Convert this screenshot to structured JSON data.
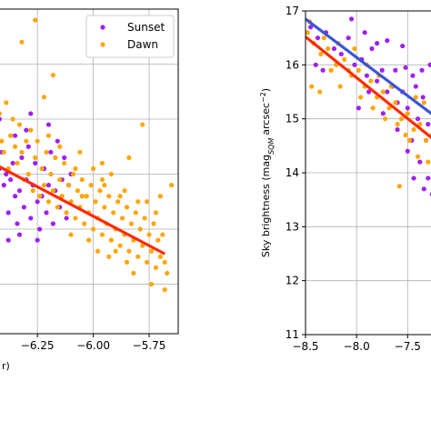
{
  "chart_data": [
    {
      "type": "scatter",
      "title": "",
      "xlabel": "",
      "xlabel_fragment": "r)",
      "ylabel": "",
      "xlim": [
        -6.45,
        -5.62
      ],
      "ylim": [
        12.1,
        18.0
      ],
      "grid": true,
      "legend_position": "top-right",
      "x_ticks": [
        -6.25,
        -6.0,
        -5.75
      ],
      "x_tick_labels": [
        "−6.25",
        "−6.00",
        "−5.75"
      ],
      "y_ticks": [
        13,
        14,
        15,
        16,
        17,
        18
      ],
      "series": [
        {
          "name": "Sunset",
          "color": "#a020f0",
          "points": [
            [
              -6.44,
              14.2
            ],
            [
              -6.43,
              14.5
            ],
            [
              -6.42,
              15.1
            ],
            [
              -6.41,
              15.4
            ],
            [
              -6.4,
              14.8
            ],
            [
              -6.39,
              15.0
            ],
            [
              -6.38,
              14.3
            ],
            [
              -6.37,
              14.9
            ],
            [
              -6.36,
              15.2
            ],
            [
              -6.35,
              14.6
            ],
            [
              -6.34,
              14.1
            ],
            [
              -6.33,
              14.7
            ],
            [
              -6.32,
              15.3
            ],
            [
              -6.31,
              14.4
            ],
            [
              -6.3,
              14.9
            ],
            [
              -6.29,
              15.5
            ],
            [
              -6.28,
              14.2
            ],
            [
              -6.27,
              14.8
            ],
            [
              -6.26,
              15.2
            ],
            [
              -6.25,
              14.5
            ],
            [
              -6.24,
              14.0
            ],
            [
              -6.23,
              14.6
            ],
            [
              -6.22,
              15.1
            ],
            [
              -6.21,
              14.3
            ],
            [
              -6.2,
              14.8
            ],
            [
              -6.19,
              15.4
            ],
            [
              -6.18,
              14.1
            ],
            [
              -6.17,
              14.7
            ],
            [
              -6.16,
              15.6
            ],
            [
              -6.15,
              14.4
            ],
            [
              -6.14,
              14.9
            ],
            [
              -6.13,
              15.3
            ],
            [
              -6.12,
              14.2
            ],
            [
              -6.11,
              14.8
            ],
            [
              -6.1,
              15.0
            ],
            [
              -6.3,
              15.8
            ],
            [
              -6.35,
              15.7
            ],
            [
              -6.2,
              15.9
            ],
            [
              -6.42,
              16.0
            ],
            [
              -6.28,
              16.1
            ],
            [
              -6.38,
              13.8
            ],
            [
              -6.33,
              13.9
            ],
            [
              -6.25,
              13.8
            ]
          ]
        },
        {
          "name": "Dawn",
          "color": "#ffa500",
          "points": [
            [
              -6.44,
              15.3
            ],
            [
              -6.43,
              15.8
            ],
            [
              -6.42,
              16.1
            ],
            [
              -6.41,
              15.6
            ],
            [
              -6.4,
              15.4
            ],
            [
              -6.39,
              16.3
            ],
            [
              -6.38,
              15.1
            ],
            [
              -6.37,
              15.7
            ],
            [
              -6.36,
              16.0
            ],
            [
              -6.35,
              15.5
            ],
            [
              -6.34,
              15.2
            ],
            [
              -6.33,
              15.9
            ],
            [
              -6.32,
              15.4
            ],
            [
              -6.31,
              14.9
            ],
            [
              -6.3,
              15.6
            ],
            [
              -6.29,
              15.0
            ],
            [
              -6.28,
              15.8
            ],
            [
              -6.27,
              14.7
            ],
            [
              -6.26,
              15.3
            ],
            [
              -6.25,
              15.6
            ],
            [
              -6.24,
              14.6
            ],
            [
              -6.23,
              15.1
            ],
            [
              -6.22,
              14.8
            ],
            [
              -6.21,
              15.4
            ],
            [
              -6.2,
              14.5
            ],
            [
              -6.19,
              15.0
            ],
            [
              -6.18,
              14.7
            ],
            [
              -6.17,
              15.3
            ],
            [
              -6.16,
              14.4
            ],
            [
              -6.15,
              14.9
            ],
            [
              -6.14,
              14.6
            ],
            [
              -6.13,
              15.2
            ],
            [
              -6.12,
              14.3
            ],
            [
              -6.11,
              14.8
            ],
            [
              -6.1,
              14.5
            ],
            [
              -6.09,
              15.0
            ],
            [
              -6.08,
              14.2
            ],
            [
              -6.07,
              14.7
            ],
            [
              -6.06,
              14.4
            ],
            [
              -6.05,
              14.9
            ],
            [
              -6.04,
              14.1
            ],
            [
              -6.03,
              14.6
            ],
            [
              -6.02,
              14.3
            ],
            [
              -6.01,
              14.8
            ],
            [
              -6.0,
              14.0
            ],
            [
              -5.99,
              14.5
            ],
            [
              -5.98,
              14.2
            ],
            [
              -5.97,
              14.7
            ],
            [
              -5.96,
              13.9
            ],
            [
              -5.95,
              14.4
            ],
            [
              -5.94,
              14.1
            ],
            [
              -5.93,
              14.6
            ],
            [
              -5.92,
              13.8
            ],
            [
              -5.91,
              14.3
            ],
            [
              -5.9,
              14.0
            ],
            [
              -5.89,
              14.5
            ],
            [
              -5.88,
              13.7
            ],
            [
              -5.87,
              14.2
            ],
            [
              -5.86,
              13.9
            ],
            [
              -5.85,
              14.4
            ],
            [
              -5.84,
              13.6
            ],
            [
              -5.83,
              14.1
            ],
            [
              -5.82,
              13.8
            ],
            [
              -5.81,
              14.3
            ],
            [
              -5.8,
              13.5
            ],
            [
              -5.79,
              14.0
            ],
            [
              -5.78,
              13.7
            ],
            [
              -5.77,
              14.2
            ],
            [
              -5.76,
              13.4
            ],
            [
              -5.75,
              13.9
            ],
            [
              -5.74,
              13.6
            ],
            [
              -5.73,
              14.1
            ],
            [
              -5.72,
              13.3
            ],
            [
              -5.71,
              13.8
            ],
            [
              -5.7,
              13.5
            ],
            [
              -5.69,
              13.9
            ],
            [
              -5.68,
              13.4
            ],
            [
              -5.67,
              13.2
            ],
            [
              -6.05,
              14.6
            ],
            [
              -5.95,
              14.8
            ],
            [
              -5.9,
              13.6
            ],
            [
              -5.85,
              13.4
            ],
            [
              -5.8,
              14.5
            ],
            [
              -6.1,
              13.9
            ],
            [
              -6.15,
              15.5
            ],
            [
              -6.2,
              15.7
            ],
            [
              -5.98,
              13.6
            ],
            [
              -5.88,
              14.6
            ],
            [
              -5.92,
              15.0
            ],
            [
              -5.82,
              13.2
            ],
            [
              -6.02,
              13.8
            ],
            [
              -6.08,
              15.1
            ],
            [
              -5.96,
              14.9
            ],
            [
              -5.76,
              14.5
            ],
            [
              -5.72,
              14.3
            ],
            [
              -5.86,
              14.7
            ],
            [
              -5.93,
              13.5
            ],
            [
              -6.0,
              15.1
            ],
            [
              -6.26,
              17.8
            ],
            [
              -6.32,
              17.4
            ],
            [
              -6.18,
              16.8
            ],
            [
              -6.22,
              16.4
            ],
            [
              -5.65,
              14.8
            ],
            [
              -5.78,
              15.9
            ],
            [
              -5.7,
              14.6
            ],
            [
              -6.06,
              15.4
            ],
            [
              -5.96,
              15.2
            ],
            [
              -5.68,
              12.9
            ],
            [
              -5.74,
              13.0
            ],
            [
              -5.84,
              15.3
            ]
          ]
        }
      ],
      "fit_lines": [
        {
          "series": "Dawn",
          "color": "#ff2a00",
          "x": [
            -6.45,
            -5.68
          ],
          "y": [
            15.2,
            13.55
          ]
        }
      ]
    },
    {
      "type": "scatter",
      "title": "",
      "xlabel": "",
      "ylabel": "Sky brightness (mag",
      "ylabel_sub": "SQM",
      "ylabel_unit": "arcsec",
      "ylabel_sup": "−2",
      "ylabel_close": ")",
      "xlim": [
        -8.5,
        -7.2
      ],
      "ylim": [
        11,
        17
      ],
      "grid": true,
      "x_ticks": [
        -8.5,
        -8.0,
        -7.5
      ],
      "x_tick_labels": [
        "−8.5",
        "−8.0",
        "−7.5"
      ],
      "y_ticks": [
        11,
        12,
        13,
        14,
        15,
        16,
        17
      ],
      "y_tick_labels": [
        "11",
        "12",
        "13",
        "14",
        "15",
        "16",
        "17"
      ],
      "series": [
        {
          "name": "Sunset",
          "color": "#a020f0",
          "points": [
            [
              -8.45,
              16.7
            ],
            [
              -8.38,
              16.5
            ],
            [
              -8.3,
              16.6
            ],
            [
              -8.22,
              16.3
            ],
            [
              -8.15,
              16.2
            ],
            [
              -8.08,
              16.5
            ],
            [
              -8.02,
              16.0
            ],
            [
              -7.95,
              16.1
            ],
            [
              -7.9,
              15.8
            ],
            [
              -7.85,
              16.3
            ],
            [
              -7.8,
              15.7
            ],
            [
              -7.75,
              15.9
            ],
            [
              -7.7,
              15.5
            ],
            [
              -7.65,
              15.6
            ],
            [
              -7.6,
              15.3
            ],
            [
              -7.55,
              15.5
            ],
            [
              -7.5,
              15.2
            ],
            [
              -7.45,
              15.8
            ],
            [
              -7.4,
              15.0
            ],
            [
              -7.35,
              15.4
            ],
            [
              -7.3,
              14.9
            ],
            [
              -7.25,
              15.2
            ],
            [
              -7.22,
              14.8
            ],
            [
              -8.05,
              16.85
            ],
            [
              -7.92,
              16.6
            ],
            [
              -7.8,
              16.4
            ],
            [
              -7.7,
              16.45
            ],
            [
              -7.55,
              16.35
            ],
            [
              -7.98,
              15.2
            ],
            [
              -7.88,
              15.5
            ],
            [
              -7.74,
              15.1
            ],
            [
              -7.6,
              14.8
            ],
            [
              -7.5,
              14.4
            ],
            [
              -7.38,
              14.2
            ],
            [
              -7.3,
              13.9
            ],
            [
              -7.26,
              13.6
            ],
            [
              -7.34,
              13.7
            ],
            [
              -7.46,
              14.6
            ],
            [
              -7.62,
              15.9
            ],
            [
              -7.52,
              15.95
            ],
            [
              -7.42,
              15.6
            ],
            [
              -8.4,
              16.0
            ],
            [
              -8.33,
              15.9
            ],
            [
              -7.44,
              13.9
            ],
            [
              -7.32,
              14.6
            ],
            [
              -7.24,
              14.1
            ],
            [
              -7.36,
              15.9
            ],
            [
              -7.28,
              16.0
            ]
          ]
        },
        {
          "name": "Dawn",
          "color": "#ffa500",
          "points": [
            [
              -8.48,
              16.6
            ],
            [
              -8.42,
              16.4
            ],
            [
              -8.35,
              16.2
            ],
            [
              -8.28,
              16.3
            ],
            [
              -8.2,
              16.0
            ],
            [
              -8.12,
              16.1
            ],
            [
              -8.05,
              15.8
            ],
            [
              -7.98,
              15.9
            ],
            [
              -7.92,
              15.6
            ],
            [
              -7.86,
              15.7
            ],
            [
              -7.8,
              15.4
            ],
            [
              -7.74,
              15.5
            ],
            [
              -7.68,
              15.2
            ],
            [
              -7.62,
              15.3
            ],
            [
              -7.56,
              15.0
            ],
            [
              -7.5,
              15.1
            ],
            [
              -7.44,
              14.8
            ],
            [
              -7.38,
              14.9
            ],
            [
              -7.32,
              14.6
            ],
            [
              -7.26,
              14.7
            ],
            [
              -7.22,
              14.4
            ],
            [
              -8.44,
              15.6
            ],
            [
              -8.36,
              15.5
            ],
            [
              -8.25,
              15.9
            ],
            [
              -8.16,
              15.6
            ],
            [
              -8.08,
              15.9
            ],
            [
              -7.96,
              15.4
            ],
            [
              -7.84,
              15.2
            ],
            [
              -7.72,
              15.0
            ],
            [
              -7.6,
              14.9
            ],
            [
              -7.48,
              14.6
            ],
            [
              -7.4,
              14.3
            ],
            [
              -7.3,
              14.2
            ],
            [
              -7.24,
              14.0
            ],
            [
              -7.58,
              13.75
            ],
            [
              -7.52,
              14.7
            ],
            [
              -7.66,
              15.6
            ],
            [
              -7.78,
              15.8
            ],
            [
              -7.9,
              16.0
            ],
            [
              -8.02,
              16.3
            ],
            [
              -8.18,
              16.4
            ],
            [
              -8.32,
              16.5
            ],
            [
              -8.46,
              16.8
            ],
            [
              -7.34,
              15.3
            ],
            [
              -7.42,
              15.4
            ]
          ]
        }
      ],
      "fit_lines": [
        {
          "series": "Sunset",
          "color": "#3a55d6",
          "x": [
            -8.5,
            -7.2
          ],
          "y": [
            16.85,
            15.0
          ]
        },
        {
          "series": "Dawn",
          "color": "#ff2a00",
          "x": [
            -8.5,
            -7.2
          ],
          "y": [
            16.52,
            14.55
          ]
        }
      ]
    }
  ]
}
